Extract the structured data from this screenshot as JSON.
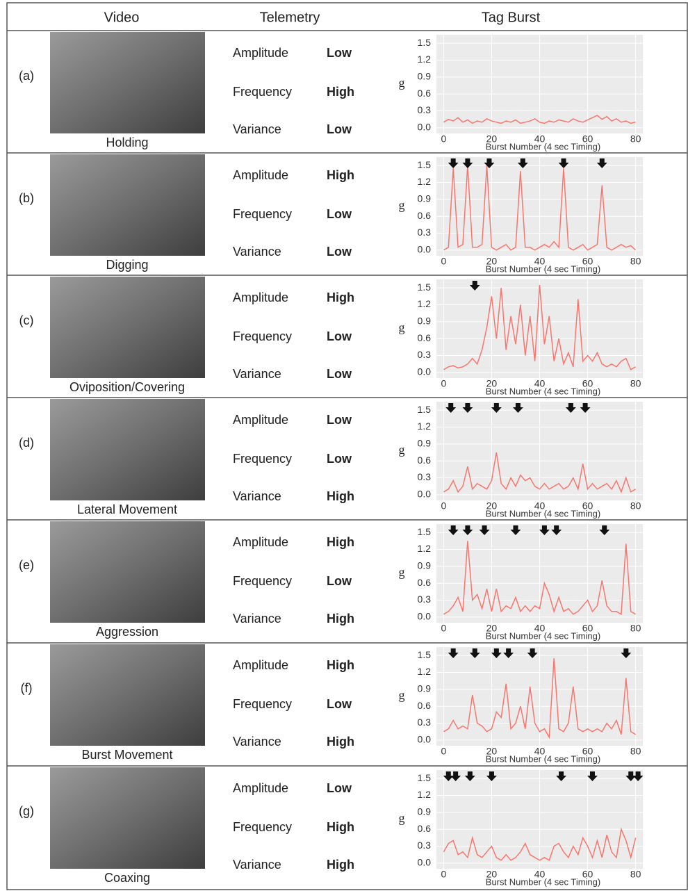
{
  "header": {
    "video": "Video",
    "telemetry": "Telemetry",
    "tag_burst": "Tag Burst"
  },
  "rows": [
    {
      "label": "(a)",
      "caption": "Holding",
      "telemetry": [
        [
          "Amplitude",
          "Low"
        ],
        [
          "Frequency",
          "High"
        ],
        [
          "Variance",
          "Low"
        ]
      ],
      "chart": {
        "type": "line",
        "ylabel": "g",
        "xlabel": "Burst Number (4 sec Timing)",
        "color": "#f8766d",
        "xlim": [
          -3,
          83
        ],
        "ylim": [
          -0.1,
          1.65
        ],
        "xticks": [
          0,
          20,
          40,
          60,
          80
        ],
        "yticks": [
          {
            "value": 0,
            "label": "0.0"
          },
          0.3,
          0.6,
          0.9,
          1.2,
          1.5
        ],
        "x": [
          0,
          2,
          4,
          6,
          8,
          10,
          12,
          14,
          16,
          18,
          20,
          22,
          24,
          26,
          28,
          30,
          32,
          34,
          36,
          38,
          40,
          42,
          44,
          46,
          48,
          50,
          52,
          54,
          56,
          58,
          60,
          62,
          64,
          66,
          68,
          70,
          72,
          74,
          76,
          78,
          80
        ],
        "values": [
          0.1,
          0.15,
          0.12,
          0.18,
          0.1,
          0.14,
          0.08,
          0.12,
          0.1,
          0.16,
          0.12,
          0.1,
          0.08,
          0.12,
          0.1,
          0.14,
          0.08,
          0.1,
          0.12,
          0.16,
          0.1,
          0.08,
          0.12,
          0.1,
          0.14,
          0.12,
          0.1,
          0.16,
          0.12,
          0.1,
          0.14,
          0.18,
          0.22,
          0.15,
          0.2,
          0.12,
          0.16,
          0.1,
          0.12,
          0.08,
          0.1
        ],
        "arrows": []
      }
    },
    {
      "label": "(b)",
      "caption": "Digging",
      "telemetry": [
        [
          "Amplitude",
          "High"
        ],
        [
          "Frequency",
          "Low"
        ],
        [
          "Variance",
          "Low"
        ]
      ],
      "chart": {
        "type": "line",
        "ylabel": "g",
        "xlabel": "Burst Number (4 sec Timing)",
        "color": "#f8766d",
        "xlim": [
          -3,
          83
        ],
        "ylim": [
          -0.1,
          1.65
        ],
        "xticks": [
          0,
          20,
          40,
          60,
          80
        ],
        "yticks": [
          {
            "value": 0,
            "label": "0.0"
          },
          0.3,
          0.6,
          0.9,
          1.2,
          1.5
        ],
        "x": [
          0,
          2,
          4,
          6,
          8,
          10,
          12,
          14,
          16,
          18,
          20,
          22,
          24,
          26,
          28,
          30,
          32,
          34,
          36,
          38,
          40,
          42,
          44,
          46,
          48,
          50,
          52,
          54,
          56,
          58,
          60,
          62,
          64,
          66,
          68,
          70,
          72,
          74,
          76,
          78,
          80
        ],
        "values": [
          0.0,
          0.05,
          1.45,
          0.05,
          0.1,
          1.5,
          0.05,
          0.05,
          0.1,
          1.5,
          0.05,
          0.0,
          0.05,
          0.1,
          0.0,
          0.05,
          1.4,
          0.05,
          0.05,
          0.0,
          0.05,
          0.1,
          0.05,
          0.15,
          0.05,
          1.45,
          0.05,
          0.0,
          0.05,
          0.1,
          0.0,
          0.05,
          0.1,
          1.15,
          0.05,
          0.0,
          0.05,
          0.1,
          0.05,
          0.08,
          0.0
        ],
        "arrows": [
          4,
          10,
          19,
          33,
          50,
          66
        ]
      }
    },
    {
      "label": "(c)",
      "caption": "Oviposition/Covering",
      "telemetry": [
        [
          "Amplitude",
          "High"
        ],
        [
          "Frequency",
          "Low"
        ],
        [
          "Variance",
          "Low"
        ]
      ],
      "chart": {
        "type": "line",
        "ylabel": "g",
        "xlabel": "Burst Number (4 sec Timing)",
        "color": "#f8766d",
        "xlim": [
          -3,
          83
        ],
        "ylim": [
          -0.1,
          1.65
        ],
        "xticks": [
          0,
          20,
          40,
          60,
          80
        ],
        "yticks": [
          {
            "value": 0,
            "label": "0.0"
          },
          0.3,
          0.6,
          0.9,
          1.2,
          1.5
        ],
        "x": [
          0,
          2,
          4,
          6,
          8,
          10,
          12,
          14,
          16,
          18,
          20,
          22,
          24,
          26,
          28,
          30,
          32,
          34,
          36,
          38,
          40,
          42,
          44,
          46,
          48,
          50,
          52,
          54,
          56,
          58,
          60,
          62,
          64,
          66,
          68,
          70,
          72,
          74,
          76,
          78,
          80
        ],
        "values": [
          0.05,
          0.1,
          0.12,
          0.08,
          0.1,
          0.15,
          0.25,
          0.15,
          0.4,
          0.8,
          1.35,
          0.6,
          1.5,
          0.4,
          1.0,
          0.5,
          1.2,
          0.3,
          1.0,
          0.2,
          1.55,
          0.5,
          1.0,
          0.2,
          0.6,
          0.15,
          0.35,
          0.1,
          1.3,
          0.2,
          0.3,
          0.2,
          0.35,
          0.15,
          0.1,
          0.15,
          0.1,
          0.2,
          0.25,
          0.05,
          0.1
        ],
        "arrows": [
          13
        ]
      }
    },
    {
      "label": "(d)",
      "caption": "Lateral Movement",
      "telemetry": [
        [
          "Amplitude",
          "Low"
        ],
        [
          "Frequency",
          "Low"
        ],
        [
          "Variance",
          "High"
        ]
      ],
      "chart": {
        "type": "line",
        "ylabel": "g",
        "xlabel": "Burst Number (4 sec Timing)",
        "color": "#f8766d",
        "xlim": [
          -3,
          83
        ],
        "ylim": [
          -0.1,
          1.65
        ],
        "xticks": [
          0,
          20,
          40,
          60,
          80
        ],
        "yticks": [
          {
            "value": 0,
            "label": "0.0"
          },
          0.3,
          0.6,
          0.9,
          1.2,
          1.5
        ],
        "x": [
          0,
          2,
          4,
          6,
          8,
          10,
          12,
          14,
          16,
          18,
          20,
          22,
          24,
          26,
          28,
          30,
          32,
          34,
          36,
          38,
          40,
          42,
          44,
          46,
          48,
          50,
          52,
          54,
          56,
          58,
          60,
          62,
          64,
          66,
          68,
          70,
          72,
          74,
          76,
          78,
          80
        ],
        "values": [
          0.05,
          0.1,
          0.25,
          0.05,
          0.15,
          0.5,
          0.1,
          0.2,
          0.15,
          0.1,
          0.25,
          0.75,
          0.2,
          0.1,
          0.3,
          0.15,
          0.35,
          0.25,
          0.3,
          0.15,
          0.1,
          0.2,
          0.1,
          0.15,
          0.2,
          0.1,
          0.15,
          0.3,
          0.1,
          0.55,
          0.1,
          0.2,
          0.1,
          0.15,
          0.2,
          0.1,
          0.25,
          0.05,
          0.3,
          0.05,
          0.1
        ],
        "arrows": [
          3,
          10,
          22,
          31,
          53,
          59
        ]
      }
    },
    {
      "label": "(e)",
      "caption": "Aggression",
      "telemetry": [
        [
          "Amplitude",
          "High"
        ],
        [
          "Frequency",
          "Low"
        ],
        [
          "Variance",
          "High"
        ]
      ],
      "chart": {
        "type": "line",
        "ylabel": "g",
        "xlabel": "Burst Number (4 sec Timing)",
        "color": "#f8766d",
        "xlim": [
          -3,
          83
        ],
        "ylim": [
          -0.1,
          1.65
        ],
        "xticks": [
          0,
          20,
          40,
          60,
          80
        ],
        "yticks": [
          {
            "value": 0,
            "label": "0.0"
          },
          0.3,
          0.6,
          0.9,
          1.2,
          1.5
        ],
        "x": [
          0,
          2,
          4,
          6,
          8,
          10,
          12,
          14,
          16,
          18,
          20,
          22,
          24,
          26,
          28,
          30,
          32,
          34,
          36,
          38,
          40,
          42,
          44,
          46,
          48,
          50,
          52,
          54,
          56,
          58,
          60,
          62,
          64,
          66,
          68,
          70,
          72,
          74,
          76,
          78,
          80
        ],
        "values": [
          0.05,
          0.1,
          0.2,
          0.35,
          0.1,
          1.35,
          0.3,
          0.4,
          0.15,
          0.5,
          0.1,
          0.5,
          0.1,
          0.2,
          0.15,
          0.35,
          0.1,
          0.2,
          0.1,
          0.2,
          0.15,
          0.6,
          0.4,
          0.1,
          0.35,
          0.1,
          0.15,
          0.05,
          0.1,
          0.2,
          0.3,
          0.1,
          0.2,
          0.65,
          0.2,
          0.1,
          0.1,
          0.05,
          1.3,
          0.1,
          0.05
        ],
        "arrows": [
          4,
          10,
          17,
          30,
          42,
          47,
          67
        ]
      }
    },
    {
      "label": "(f)",
      "caption": "Burst Movement",
      "telemetry": [
        [
          "Amplitude",
          "High"
        ],
        [
          "Frequency",
          "Low"
        ],
        [
          "Variance",
          "High"
        ]
      ],
      "chart": {
        "type": "line",
        "ylabel": "g",
        "xlabel": "Burst Number (4 sec Timing)",
        "color": "#f8766d",
        "xlim": [
          -3,
          83
        ],
        "ylim": [
          -0.1,
          1.65
        ],
        "xticks": [
          0,
          20,
          40,
          60,
          80
        ],
        "yticks": [
          {
            "value": 0,
            "label": "0.0"
          },
          0.3,
          0.6,
          0.9,
          1.2,
          1.5
        ],
        "x": [
          0,
          2,
          4,
          6,
          8,
          10,
          12,
          14,
          16,
          18,
          20,
          22,
          24,
          26,
          28,
          30,
          32,
          34,
          36,
          38,
          40,
          42,
          44,
          46,
          48,
          50,
          52,
          54,
          56,
          58,
          60,
          62,
          64,
          66,
          68,
          70,
          72,
          74,
          76,
          78,
          80
        ],
        "values": [
          0.15,
          0.2,
          0.35,
          0.2,
          0.25,
          0.2,
          0.8,
          0.3,
          0.25,
          0.15,
          0.2,
          0.5,
          0.4,
          1.0,
          0.2,
          0.3,
          0.6,
          0.2,
          0.95,
          0.3,
          0.15,
          0.2,
          0.05,
          1.45,
          0.2,
          0.15,
          0.3,
          0.95,
          0.2,
          0.15,
          0.2,
          0.15,
          0.2,
          0.15,
          0.3,
          0.2,
          0.35,
          0.1,
          1.1,
          0.15,
          0.1
        ],
        "arrows": [
          4,
          13,
          22,
          27,
          37,
          76
        ]
      }
    },
    {
      "label": "(g)",
      "caption": "Coaxing",
      "telemetry": [
        [
          "Amplitude",
          "Low"
        ],
        [
          "Frequency",
          "High"
        ],
        [
          "Variance",
          "High"
        ]
      ],
      "chart": {
        "type": "line",
        "ylabel": "g",
        "xlabel": "Burst Number (4 sec Timing)",
        "color": "#f8766d",
        "xlim": [
          -3,
          83
        ],
        "ylim": [
          -0.1,
          1.65
        ],
        "xticks": [
          0,
          20,
          40,
          60,
          80
        ],
        "yticks": [
          {
            "value": 0,
            "label": "0.0"
          },
          0.3,
          0.6,
          0.9,
          1.2,
          1.5
        ],
        "x": [
          0,
          2,
          4,
          6,
          8,
          10,
          12,
          14,
          16,
          18,
          20,
          22,
          24,
          26,
          28,
          30,
          32,
          34,
          36,
          38,
          40,
          42,
          44,
          46,
          48,
          50,
          52,
          54,
          56,
          58,
          60,
          62,
          64,
          66,
          68,
          70,
          72,
          74,
          76,
          78,
          80
        ],
        "values": [
          0.2,
          0.35,
          0.4,
          0.15,
          0.2,
          0.1,
          0.45,
          0.15,
          0.1,
          0.2,
          0.3,
          0.1,
          0.05,
          0.15,
          0.05,
          0.1,
          0.2,
          0.35,
          0.15,
          0.1,
          0.05,
          0.1,
          0.05,
          0.3,
          0.35,
          0.2,
          0.1,
          0.3,
          0.15,
          0.45,
          0.3,
          0.1,
          0.4,
          0.1,
          0.5,
          0.2,
          0.1,
          0.6,
          0.4,
          0.1,
          0.45
        ],
        "arrows": [
          2,
          5,
          11,
          20,
          49,
          62,
          78,
          81
        ]
      }
    }
  ]
}
